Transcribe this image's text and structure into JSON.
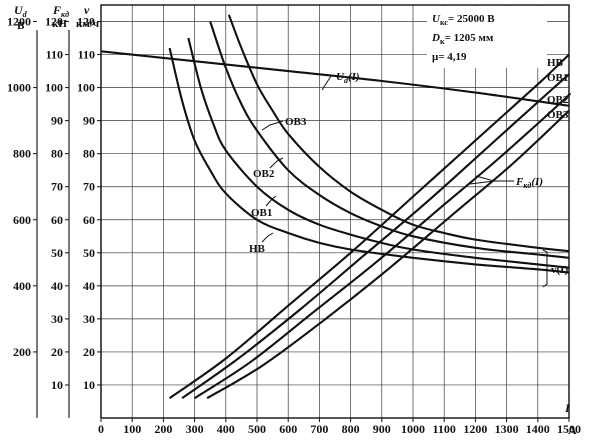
{
  "chart_data": {
    "type": "line",
    "info": {
      "line1_name": "U",
      "line1_sub": "кс",
      "line1_value": "= 25000 В",
      "line2_name": "D",
      "line2_sub": "к",
      "line2_value": "= 1205 мм",
      "line3": "μ= 4,19"
    },
    "xaxis": {
      "label": "I",
      "unit": "А",
      "range": [
        0,
        1500
      ],
      "ticks": [
        0,
        100,
        200,
        300,
        400,
        500,
        600,
        700,
        800,
        900,
        1000,
        1100,
        1200,
        1300,
        1400,
        1500
      ]
    },
    "axes_left": [
      {
        "symbol": "U",
        "sub": "d",
        "unit": "В",
        "range": [
          0,
          1250
        ],
        "ticks": [
          200,
          400,
          600,
          800,
          1000,
          1200
        ]
      },
      {
        "symbol": "F",
        "sub": "кд",
        "unit": "кН",
        "range": [
          0,
          125
        ],
        "ticks": [
          10,
          20,
          30,
          40,
          50,
          60,
          70,
          80,
          90,
          100,
          110,
          120
        ]
      },
      {
        "symbol": "v",
        "sub": "",
        "unit": "км/ч",
        "range": [
          0,
          125
        ],
        "ticks": [
          10,
          20,
          30,
          40,
          50,
          60,
          70,
          80,
          90,
          100,
          110,
          120
        ]
      }
    ],
    "grid": true,
    "series": [
      {
        "name": "Ud(I)",
        "axis": "Ud",
        "x": [
          0,
          300,
          600,
          900,
          1200,
          1500
        ],
        "y": [
          1110,
          1080,
          1050,
          1020,
          985,
          945
        ]
      },
      {
        "name": "НВ",
        "axis": "v",
        "x": [
          220,
          260,
          300,
          350,
          400,
          500,
          600,
          700,
          800,
          1000,
          1200,
          1400,
          1500
        ],
        "y": [
          112,
          96,
          84,
          75,
          68,
          60,
          56,
          53,
          51,
          48.5,
          46.5,
          45,
          44
        ]
      },
      {
        "name": "ОВ1",
        "axis": "v",
        "x": [
          280,
          320,
          360,
          400,
          500,
          600,
          700,
          800,
          900,
          1000,
          1200,
          1400,
          1500
        ],
        "y": [
          115,
          100,
          89,
          81,
          70,
          63,
          58.5,
          55.5,
          53,
          51,
          48.5,
          46.5,
          45.5
        ]
      },
      {
        "name": "ОВ2",
        "axis": "v",
        "x": [
          350,
          400,
          450,
          500,
          600,
          700,
          800,
          900,
          1000,
          1200,
          1400,
          1500
        ],
        "y": [
          120,
          106,
          95,
          87,
          75,
          67.5,
          62,
          58,
          55,
          51.5,
          49.5,
          48.5
        ]
      },
      {
        "name": "ОВ3",
        "axis": "v",
        "x": [
          410,
          450,
          500,
          550,
          600,
          700,
          800,
          900,
          1000,
          1100,
          1200,
          1400,
          1500
        ],
        "y": [
          122,
          112,
          101,
          93,
          86,
          76,
          68.5,
          63,
          58.5,
          56,
          54,
          51.5,
          50.5
        ]
      },
      {
        "name": "НВ",
        "axis": "Fкд",
        "x": [
          220,
          400,
          600,
          800,
          1000,
          1200,
          1400,
          1500
        ],
        "y": [
          6,
          18,
          34,
          50,
          67,
          84,
          101,
          110
        ]
      },
      {
        "name": "ОВ1",
        "axis": "Fкд",
        "x": [
          260,
          440,
          640,
          840,
          1040,
          1240,
          1440,
          1500
        ],
        "y": [
          6,
          18,
          33,
          49,
          65,
          82,
          99,
          104
        ]
      },
      {
        "name": "ОВ2",
        "axis": "Fкд",
        "x": [
          300,
          480,
          680,
          880,
          1080,
          1280,
          1480,
          1500
        ],
        "y": [
          6,
          17,
          32,
          47,
          63,
          79,
          96,
          98
        ]
      },
      {
        "name": "ОВ3",
        "axis": "Fкд",
        "x": [
          340,
          520,
          720,
          920,
          1120,
          1320,
          1500
        ],
        "y": [
          6,
          16,
          30,
          45,
          61,
          77,
          93
        ]
      }
    ],
    "annotations": [
      {
        "name": "Ud_label",
        "text": "U",
        "sub": "d",
        "suffix": "(I)"
      },
      {
        "name": "F_label",
        "text": "F",
        "sub": "кд",
        "suffix": "(I)"
      },
      {
        "name": "v_label",
        "text": "v(I)"
      },
      {
        "name": "OB3",
        "text": "ОВ3"
      },
      {
        "name": "OB2",
        "text": "ОВ2"
      },
      {
        "name": "OB1",
        "text": "ОВ1"
      },
      {
        "name": "NV",
        "text": "НВ"
      }
    ]
  }
}
